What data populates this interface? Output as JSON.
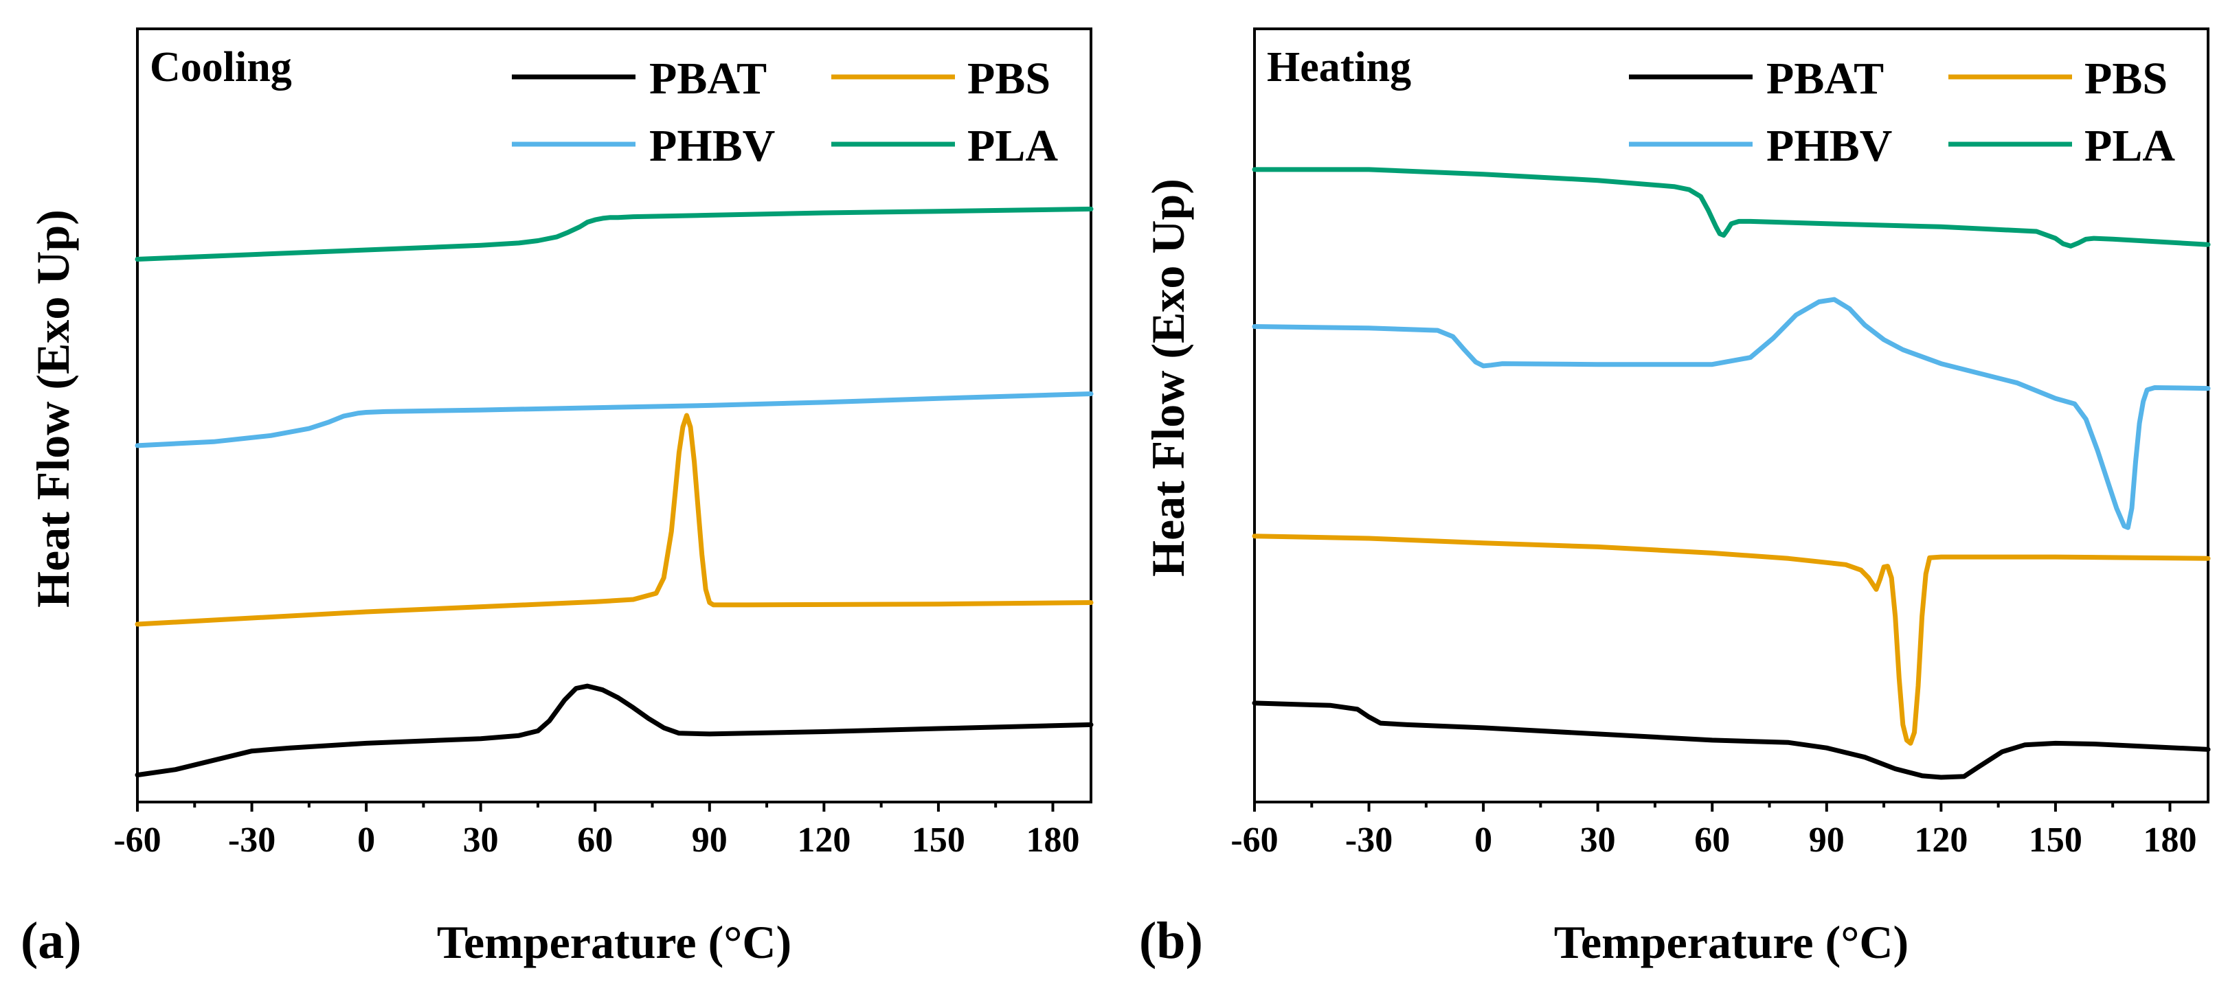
{
  "colors": {
    "PBAT": "#000000",
    "PBS": "#E69F00",
    "PHBV": "#56B4E9",
    "PLA": "#009E73"
  },
  "chart_data": [
    {
      "type": "line",
      "panel_label": "(a)",
      "mode_label": "Cooling",
      "xlabel": "Temperature (°C)",
      "ylabel": "Heat Flow (Exo Up)",
      "xlim": [
        -60,
        190
      ],
      "ylim": [
        0,
        100
      ],
      "xticks": [
        -60,
        -30,
        0,
        30,
        60,
        90,
        120,
        150,
        180
      ],
      "xtick_labels": [
        "-60",
        "-30",
        "0",
        "30",
        "60",
        "90",
        "120",
        "150",
        "180"
      ],
      "legend": [
        "PBAT",
        "PBS",
        "PHBV",
        "PLA"
      ],
      "legend_position": "top-right",
      "series": [
        {
          "name": "PBAT",
          "x": [
            -60,
            -50,
            -40,
            -30,
            -20,
            0,
            30,
            40,
            45,
            48,
            52,
            55,
            58,
            62,
            66,
            70,
            74,
            78,
            82,
            90,
            120,
            150,
            190
          ],
          "y": [
            3.5,
            4.2,
            5.4,
            6.6,
            7.0,
            7.6,
            8.2,
            8.6,
            9.2,
            10.5,
            13.2,
            14.7,
            15.0,
            14.5,
            13.5,
            12.2,
            10.8,
            9.6,
            8.9,
            8.8,
            9.1,
            9.5,
            10.0
          ]
        },
        {
          "name": "PBS",
          "x": [
            -60,
            0,
            60,
            70,
            76,
            78,
            80,
            81,
            82,
            83,
            84,
            85,
            86,
            87,
            88,
            89,
            90,
            91,
            100,
            150,
            190
          ],
          "y": [
            23.0,
            24.6,
            25.9,
            26.2,
            27.0,
            29.0,
            35.0,
            40.0,
            45.2,
            48.5,
            50.0,
            48.5,
            44.0,
            38.0,
            32.0,
            27.5,
            25.8,
            25.5,
            25.5,
            25.6,
            25.8
          ]
        },
        {
          "name": "PHBV",
          "x": [
            -60,
            -40,
            -25,
            -15,
            -10,
            -6,
            -2,
            0,
            5,
            30,
            60,
            90,
            120,
            150,
            190
          ],
          "y": [
            46.1,
            46.6,
            47.4,
            48.3,
            49.1,
            49.9,
            50.3,
            50.4,
            50.5,
            50.7,
            51.0,
            51.3,
            51.7,
            52.2,
            52.8
          ]
        },
        {
          "name": "PLA",
          "x": [
            -60,
            0,
            30,
            40,
            45,
            50,
            53,
            56,
            58,
            60,
            62,
            64,
            66,
            70,
            90,
            120,
            150,
            190
          ],
          "y": [
            70.2,
            71.4,
            72.0,
            72.3,
            72.6,
            73.1,
            73.7,
            74.4,
            75.0,
            75.3,
            75.5,
            75.6,
            75.6,
            75.7,
            75.9,
            76.2,
            76.4,
            76.7
          ]
        }
      ]
    },
    {
      "type": "line",
      "panel_label": "(b)",
      "mode_label": "Heating",
      "xlabel": "Temperature (°C)",
      "ylabel": "Heat Flow (Exo Up)",
      "xlim": [
        -60,
        190
      ],
      "ylim": [
        0,
        100
      ],
      "xticks": [
        -60,
        -30,
        0,
        30,
        60,
        90,
        120,
        150,
        180
      ],
      "xtick_labels": [
        "-60",
        "-30",
        "0",
        "30",
        "60",
        "90",
        "120",
        "150",
        "180"
      ],
      "legend": [
        "PBAT",
        "PBS",
        "PHBV",
        "PLA"
      ],
      "legend_position": "top-right",
      "series": [
        {
          "name": "PBAT",
          "x": [
            -60,
            -40,
            -33,
            -30,
            -27,
            -20,
            0,
            30,
            60,
            80,
            90,
            100,
            108,
            115,
            120,
            126,
            130,
            136,
            142,
            150,
            160,
            190
          ],
          "y": [
            12.8,
            12.5,
            12.0,
            11.0,
            10.2,
            10.0,
            9.6,
            8.8,
            8.0,
            7.7,
            7.0,
            5.8,
            4.3,
            3.4,
            3.2,
            3.3,
            4.6,
            6.5,
            7.4,
            7.6,
            7.5,
            6.8
          ]
        },
        {
          "name": "PBS",
          "x": [
            -60,
            -30,
            0,
            30,
            60,
            80,
            95,
            99,
            101,
            103,
            104,
            105,
            106,
            107,
            108,
            109,
            110,
            111,
            112,
            113,
            114,
            115,
            116,
            117,
            120,
            150,
            190
          ],
          "y": [
            34.4,
            34.1,
            33.5,
            33.0,
            32.2,
            31.5,
            30.7,
            30.0,
            29.0,
            27.5,
            28.8,
            30.4,
            30.5,
            29.0,
            24.0,
            16.0,
            10.0,
            8.0,
            7.6,
            9.0,
            15.0,
            24.0,
            29.5,
            31.6,
            31.7,
            31.7,
            31.5
          ]
        },
        {
          "name": "PHBV",
          "x": [
            -60,
            -30,
            -12,
            -8,
            -5,
            -2,
            0,
            2,
            5,
            30,
            60,
            70,
            76,
            82,
            88,
            92,
            96,
            100,
            105,
            110,
            120,
            140,
            150,
            155,
            158,
            161,
            164,
            166,
            168,
            169,
            170,
            171,
            172,
            173,
            174,
            176,
            190
          ],
          "y": [
            61.5,
            61.3,
            61.0,
            60.2,
            58.5,
            56.9,
            56.4,
            56.5,
            56.7,
            56.6,
            56.6,
            57.5,
            60.0,
            63.0,
            64.7,
            65.0,
            63.8,
            61.7,
            59.8,
            58.5,
            56.7,
            54.2,
            52.2,
            51.5,
            49.5,
            45.5,
            41.0,
            38.0,
            35.7,
            35.5,
            38.0,
            44.0,
            49.0,
            51.8,
            53.3,
            53.6,
            53.5
          ]
        },
        {
          "name": "PLA",
          "x": [
            -60,
            -30,
            0,
            30,
            50,
            54,
            57,
            59,
            61,
            62,
            63,
            64,
            65,
            67,
            70,
            90,
            120,
            145,
            150,
            152,
            154,
            156,
            158,
            160,
            165,
            190
          ],
          "y": [
            81.8,
            81.8,
            81.2,
            80.4,
            79.6,
            79.2,
            78.3,
            76.5,
            74.4,
            73.5,
            73.3,
            74.0,
            74.8,
            75.1,
            75.1,
            74.8,
            74.4,
            73.8,
            72.9,
            72.2,
            71.9,
            72.3,
            72.8,
            72.9,
            72.8,
            72.1
          ]
        }
      ]
    }
  ]
}
